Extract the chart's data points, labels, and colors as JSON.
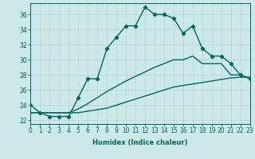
{
  "xlabel": "Humidex (Indice chaleur)",
  "background_color": "#cde8e8",
  "grid_color": "#b8d8d8",
  "line_color": "#006666",
  "x_values": [
    0,
    1,
    2,
    3,
    4,
    5,
    6,
    7,
    8,
    9,
    10,
    11,
    12,
    13,
    14,
    15,
    16,
    17,
    18,
    19,
    20,
    21,
    22,
    23
  ],
  "y_main": [
    24,
    23,
    22.5,
    22.5,
    22.5,
    25,
    27.5,
    27.5,
    31.5,
    33,
    34.5,
    34.5,
    37,
    36,
    36,
    35.5,
    33.5,
    34.5,
    31.5,
    30.5,
    30.5,
    29.5,
    28,
    27.5
  ],
  "y_line1": [
    23,
    23,
    23,
    23,
    23,
    23,
    23.2,
    23.4,
    23.6,
    24,
    24.4,
    24.8,
    25.2,
    25.6,
    26,
    26.4,
    26.6,
    26.8,
    27,
    27.2,
    27.4,
    27.6,
    27.7,
    27.7
  ],
  "y_line2": [
    23,
    23,
    23,
    23,
    23,
    23.5,
    24.2,
    25,
    25.8,
    26.5,
    27.2,
    27.8,
    28.4,
    29,
    29.5,
    30,
    30,
    30.5,
    29.5,
    29.5,
    29.5,
    28,
    28,
    27.5
  ],
  "xlim": [
    0,
    23
  ],
  "ylim": [
    21.5,
    37.5
  ],
  "yticks": [
    22,
    24,
    26,
    28,
    30,
    32,
    34,
    36
  ],
  "xticks": [
    0,
    1,
    2,
    3,
    4,
    5,
    6,
    7,
    8,
    9,
    10,
    11,
    12,
    13,
    14,
    15,
    16,
    17,
    18,
    19,
    20,
    21,
    22,
    23
  ],
  "xtick_labels": [
    "0",
    "1",
    "2",
    "3",
    "4",
    "5",
    "6",
    "7",
    "8",
    "9",
    "10",
    "11",
    "12",
    "13",
    "14",
    "15",
    "16",
    "17",
    "18",
    "19",
    "20",
    "21",
    "22",
    "23"
  ],
  "marker": "D",
  "marker_size": 2.2,
  "linewidth": 1.0
}
